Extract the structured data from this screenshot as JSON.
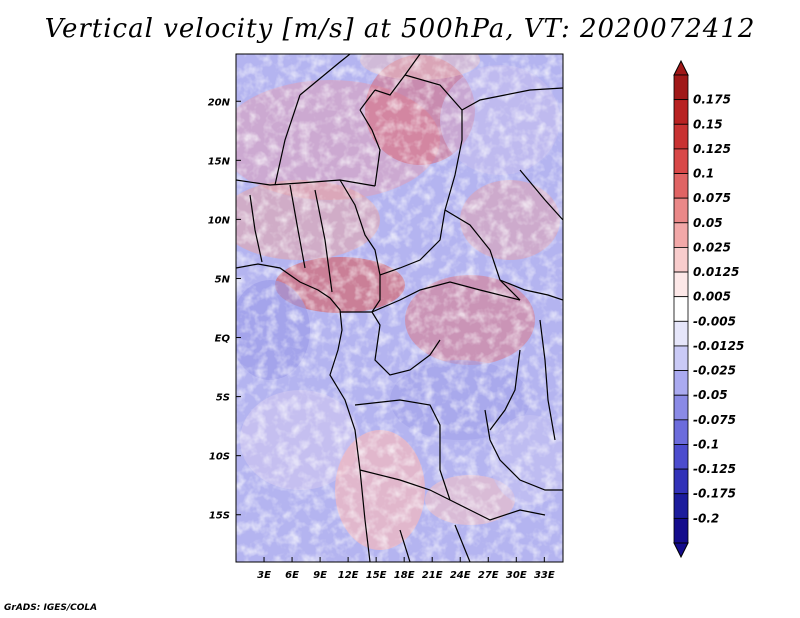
{
  "title": "Vertical velocity [m/s] at 500hPa, VT: 2020072412",
  "footer": "GrADS: IGES/COLA",
  "map": {
    "lat_labels": [
      "20N",
      "15N",
      "10N",
      "5N",
      "EQ",
      "5S",
      "10S",
      "15S"
    ],
    "lat_values": [
      20,
      15,
      10,
      5,
      0,
      -5,
      -10,
      -15
    ],
    "lon_labels": [
      "3E",
      "6E",
      "9E",
      "12E",
      "15E",
      "18E",
      "21E",
      "24E",
      "27E",
      "30E",
      "33E"
    ],
    "lon_values": [
      3,
      6,
      9,
      12,
      15,
      18,
      21,
      24,
      27,
      30,
      33
    ],
    "lon_range": [
      0,
      35
    ],
    "lat_range": [
      -19,
      24
    ]
  },
  "colorbar": {
    "levels": [
      "0.175",
      "0.15",
      "0.125",
      "0.1",
      "0.075",
      "0.05",
      "0.025",
      "0.0125",
      "0.005",
      "-0.005",
      "-0.0125",
      "-0.025",
      "-0.05",
      "-0.075",
      "-0.1",
      "-0.125",
      "-0.175",
      "-0.2"
    ],
    "colors": [
      "#a01818",
      "#b82222",
      "#c83232",
      "#d84848",
      "#e06464",
      "#ea8888",
      "#f2a8a8",
      "#f8cccc",
      "#fde8e8",
      "#ffffff",
      "#e6e6fa",
      "#cacaf6",
      "#aaaaf0",
      "#8a8ae6",
      "#6c6cdc",
      "#4c4cce",
      "#3232b8",
      "#1c1c9c",
      "#140c8c"
    ],
    "top_arrow_color": "#a01818",
    "bottom_arrow_color": "#140c8c"
  }
}
